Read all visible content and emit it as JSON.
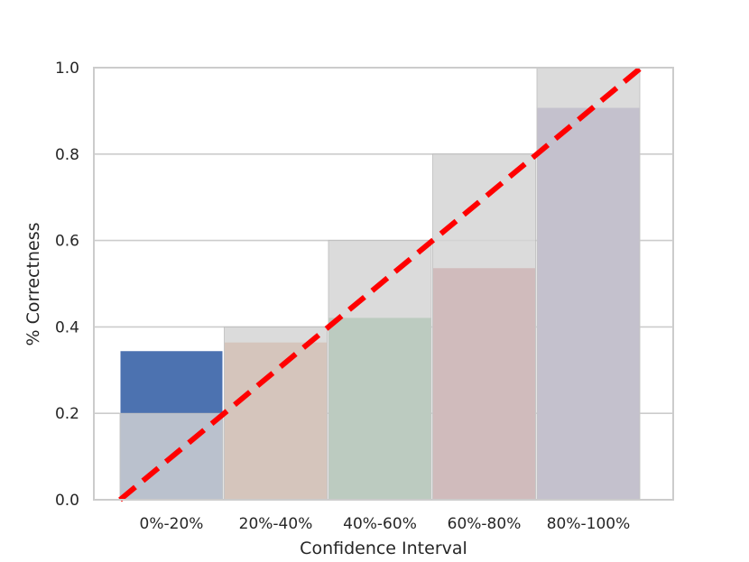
{
  "chart_data": {
    "type": "bar",
    "title": "",
    "xlabel": "Confidence Interval",
    "ylabel": "% Correctness",
    "ylim": [
      0,
      1
    ],
    "grid": true,
    "categories": [
      "0%-20%",
      "20%-40%",
      "40%-60%",
      "60%-80%",
      "80%-100%"
    ],
    "y_ticks": [
      "0.0",
      "0.2",
      "0.4",
      "0.6",
      "0.8",
      "1.0"
    ],
    "series": [
      {
        "values": [
          0.345,
          0.365,
          0.422,
          0.537,
          0.908
        ]
      }
    ],
    "reference_gap": [
      0.2,
      0.4,
      0.6,
      0.8,
      1.0
    ],
    "perfect_calibration_line": {
      "x": [
        0,
        1
      ],
      "y": [
        0,
        1
      ]
    },
    "colors": {
      "bars": [
        "#4c72b0",
        "#dd8452",
        "#55a868",
        "#c44e52",
        "#8172b3"
      ],
      "gap": "#d3d3d3",
      "diagonal": "#ff0000",
      "grid": "#cccccc",
      "axes_edge": "#cccccc"
    }
  }
}
